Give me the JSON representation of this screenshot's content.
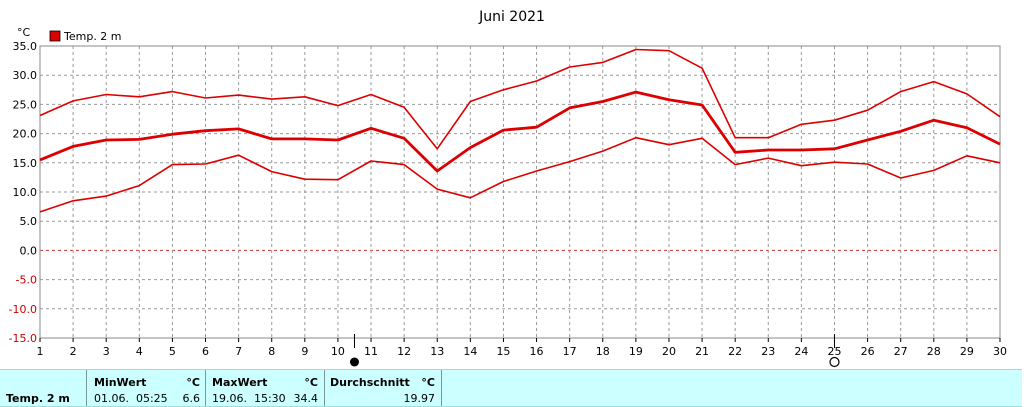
{
  "chart_data": {
    "type": "line",
    "title": "Juni 2021",
    "ylabel": "°C",
    "xlabel": "",
    "x": [
      1,
      2,
      3,
      4,
      5,
      6,
      7,
      8,
      9,
      10,
      11,
      12,
      13,
      14,
      15,
      16,
      17,
      18,
      19,
      20,
      21,
      22,
      23,
      24,
      25,
      26,
      27,
      28,
      29,
      30
    ],
    "xlim": [
      1,
      30
    ],
    "ylim": [
      -15,
      35
    ],
    "yticks": [
      "35.0",
      "30.0",
      "25.0",
      "20.0",
      "15.0",
      "10.0",
      "5.0",
      "0.0",
      "-5.0",
      "-10.0",
      "-15.0"
    ],
    "grid": true,
    "legend": "top-left",
    "legend_label": "Temp. 2 m",
    "color": "#dd0000",
    "series": [
      {
        "name": "Temp. 2 m",
        "role": "max",
        "values": [
          23.1,
          25.6,
          26.7,
          26.3,
          27.2,
          26.1,
          26.6,
          25.9,
          26.3,
          24.8,
          26.7,
          24.5,
          17.4,
          25.5,
          27.5,
          29.0,
          31.4,
          32.2,
          34.4,
          34.2,
          31.2,
          19.3,
          19.3,
          21.6,
          22.3,
          24.0,
          27.2,
          28.9,
          26.8,
          22.9
        ]
      },
      {
        "name": "Temp. 2 m",
        "role": "average",
        "values": [
          15.5,
          17.8,
          18.9,
          19.0,
          19.9,
          20.5,
          20.8,
          19.1,
          19.1,
          18.9,
          20.9,
          19.2,
          13.6,
          17.6,
          20.6,
          21.1,
          24.4,
          25.5,
          27.1,
          25.8,
          24.9,
          16.8,
          17.2,
          17.2,
          17.4,
          18.9,
          20.4,
          22.3,
          21.0,
          18.2
        ]
      },
      {
        "name": "Temp. 2 m",
        "role": "min",
        "values": [
          6.6,
          8.5,
          9.3,
          11.1,
          14.7,
          14.8,
          16.3,
          13.5,
          12.2,
          12.1,
          15.3,
          14.7,
          10.5,
          9.0,
          11.8,
          13.6,
          15.2,
          17.0,
          19.3,
          18.1,
          19.2,
          14.7,
          15.8,
          14.5,
          15.1,
          14.8,
          12.4,
          13.7,
          16.2,
          15.0
        ]
      }
    ],
    "markers": [
      {
        "x": 10.5,
        "type": "full-moon"
      },
      {
        "x": 25,
        "type": "new-moon"
      }
    ]
  },
  "stats": {
    "label": "Temp. 2 m",
    "min_header": "MinWert",
    "min_unit": "°C",
    "min_time": "01.06.  05:25",
    "min_value": "6.6",
    "max_header": "MaxWert",
    "max_unit": "°C",
    "max_time": "19.06.  15:30",
    "max_value": "34.4",
    "avg_header": "Durchschnitt",
    "avg_unit": "°C",
    "avg_value": "19.97"
  }
}
